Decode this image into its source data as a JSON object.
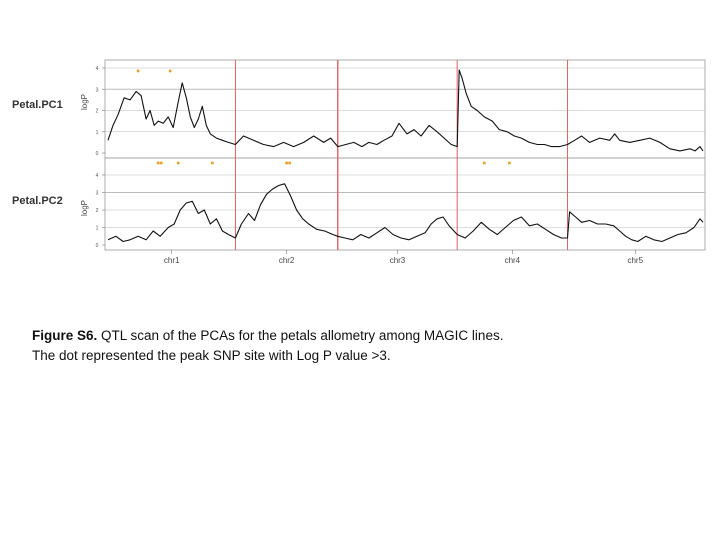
{
  "figure": {
    "caption_label": "Figure S6.",
    "caption_line1": "QTL scan of the PCAs for the petals allometry among MAGIC lines.",
    "caption_line2": "The dot represented the peak SNP site with Log P value >3."
  },
  "colors": {
    "line": "#111111",
    "chrom_boundary": "#e06060",
    "threshold": "#bbbbbb",
    "peak_dot": "#e0a020",
    "frame": "#999999"
  },
  "chart_data": [
    {
      "type": "line",
      "title": "Petal.PC1",
      "ylabel": "logP",
      "ylim": [
        0,
        4
      ],
      "yticks": [
        "0",
        "1",
        "2",
        "3",
        "4"
      ],
      "threshold": 3,
      "chromosomes": [
        {
          "name": "chr1",
          "start": 0,
          "end": 127
        },
        {
          "name": "chr2",
          "start": 127,
          "end": 229
        },
        {
          "name": "chr3",
          "start": 229,
          "end": 348
        },
        {
          "name": "chr4",
          "start": 348,
          "end": 458
        },
        {
          "name": "chr5",
          "start": 458,
          "end": 593
        }
      ],
      "series": [
        {
          "x": [
            0,
            5,
            10,
            16,
            22,
            28,
            33,
            38,
            42,
            46,
            50,
            55,
            60,
            65,
            70,
            74,
            78,
            82,
            86,
            90,
            94,
            98,
            102,
            108,
            114,
            120,
            127,
            135,
            145,
            155,
            165,
            175,
            185,
            195,
            205,
            215,
            222,
            229,
            237,
            245,
            253,
            260,
            268,
            275,
            283,
            290,
            298,
            305,
            312,
            320,
            328,
            335,
            342,
            348,
            350,
            353,
            357,
            362,
            368,
            375,
            383,
            390,
            398,
            405,
            412,
            420,
            428,
            435,
            442,
            450,
            458,
            465,
            472,
            480,
            490,
            500,
            505,
            510,
            520,
            530,
            540,
            550,
            560,
            570,
            580,
            585,
            590,
            593
          ],
          "y": [
            0.6,
            1.3,
            1.8,
            2.6,
            2.5,
            2.9,
            2.7,
            1.6,
            2.0,
            1.3,
            1.5,
            1.4,
            1.7,
            1.2,
            2.4,
            3.3,
            2.6,
            1.7,
            1.2,
            1.6,
            2.2,
            1.3,
            0.9,
            0.7,
            0.6,
            0.5,
            0.4,
            0.8,
            0.6,
            0.4,
            0.3,
            0.5,
            0.3,
            0.5,
            0.8,
            0.5,
            0.7,
            0.3,
            0.4,
            0.5,
            0.3,
            0.5,
            0.4,
            0.6,
            0.8,
            1.4,
            0.9,
            1.1,
            0.8,
            1.3,
            1.0,
            0.7,
            0.4,
            0.3,
            3.9,
            3.5,
            2.8,
            2.2,
            2.0,
            1.7,
            1.5,
            1.1,
            1.0,
            0.8,
            0.7,
            0.5,
            0.4,
            0.4,
            0.3,
            0.3,
            0.4,
            0.6,
            0.8,
            0.5,
            0.7,
            0.6,
            0.9,
            0.6,
            0.5,
            0.6,
            0.7,
            0.5,
            0.2,
            0.1,
            0.2,
            0.1,
            0.3,
            0.1
          ]
        }
      ],
      "peak_markers_x": [
        30,
        62
      ]
    },
    {
      "type": "line",
      "title": "Petal.PC2",
      "ylabel": "logP",
      "ylim": [
        0,
        4
      ],
      "yticks": [
        "0",
        "1",
        "2",
        "3",
        "4"
      ],
      "threshold": 3,
      "chromosomes": [
        {
          "name": "chr1",
          "start": 0,
          "end": 127
        },
        {
          "name": "chr2",
          "start": 127,
          "end": 229
        },
        {
          "name": "chr3",
          "start": 229,
          "end": 348
        },
        {
          "name": "chr4",
          "start": 348,
          "end": 458
        },
        {
          "name": "chr5",
          "start": 458,
          "end": 593
        }
      ],
      "series": [
        {
          "x": [
            0,
            8,
            15,
            22,
            30,
            38,
            45,
            52,
            60,
            66,
            72,
            78,
            84,
            90,
            96,
            102,
            108,
            114,
            120,
            127,
            133,
            140,
            146,
            152,
            158,
            164,
            170,
            176,
            182,
            188,
            194,
            200,
            208,
            216,
            224,
            229,
            236,
            244,
            252,
            260,
            268,
            276,
            284,
            292,
            300,
            308,
            316,
            322,
            328,
            334,
            340,
            348,
            356,
            364,
            372,
            380,
            388,
            396,
            404,
            412,
            420,
            428,
            436,
            444,
            452,
            458,
            460,
            466,
            472,
            480,
            488,
            496,
            504,
            510,
            516,
            522,
            528,
            536,
            544,
            552,
            560,
            568,
            576,
            584,
            590,
            593
          ],
          "y": [
            0.3,
            0.5,
            0.2,
            0.3,
            0.5,
            0.3,
            0.8,
            0.5,
            1.0,
            1.2,
            2.0,
            2.4,
            2.5,
            1.8,
            2.0,
            1.2,
            1.5,
            0.8,
            0.6,
            0.4,
            1.2,
            1.8,
            1.4,
            2.3,
            2.9,
            3.2,
            3.4,
            3.5,
            2.8,
            2.0,
            1.5,
            1.2,
            0.9,
            0.8,
            0.6,
            0.5,
            0.4,
            0.3,
            0.6,
            0.4,
            0.7,
            1.0,
            0.6,
            0.4,
            0.3,
            0.5,
            0.7,
            1.2,
            1.5,
            1.6,
            1.1,
            0.6,
            0.4,
            0.8,
            1.3,
            0.9,
            0.6,
            1.0,
            1.4,
            1.6,
            1.1,
            1.2,
            0.9,
            0.6,
            0.4,
            0.4,
            1.9,
            1.6,
            1.3,
            1.4,
            1.2,
            1.2,
            1.1,
            0.8,
            0.5,
            0.3,
            0.2,
            0.5,
            0.3,
            0.2,
            0.4,
            0.6,
            0.7,
            1.0,
            1.5,
            1.3
          ]
        }
      ],
      "peak_markers_x": [
        50,
        53,
        70,
        104,
        178,
        181,
        375,
        400
      ]
    }
  ]
}
